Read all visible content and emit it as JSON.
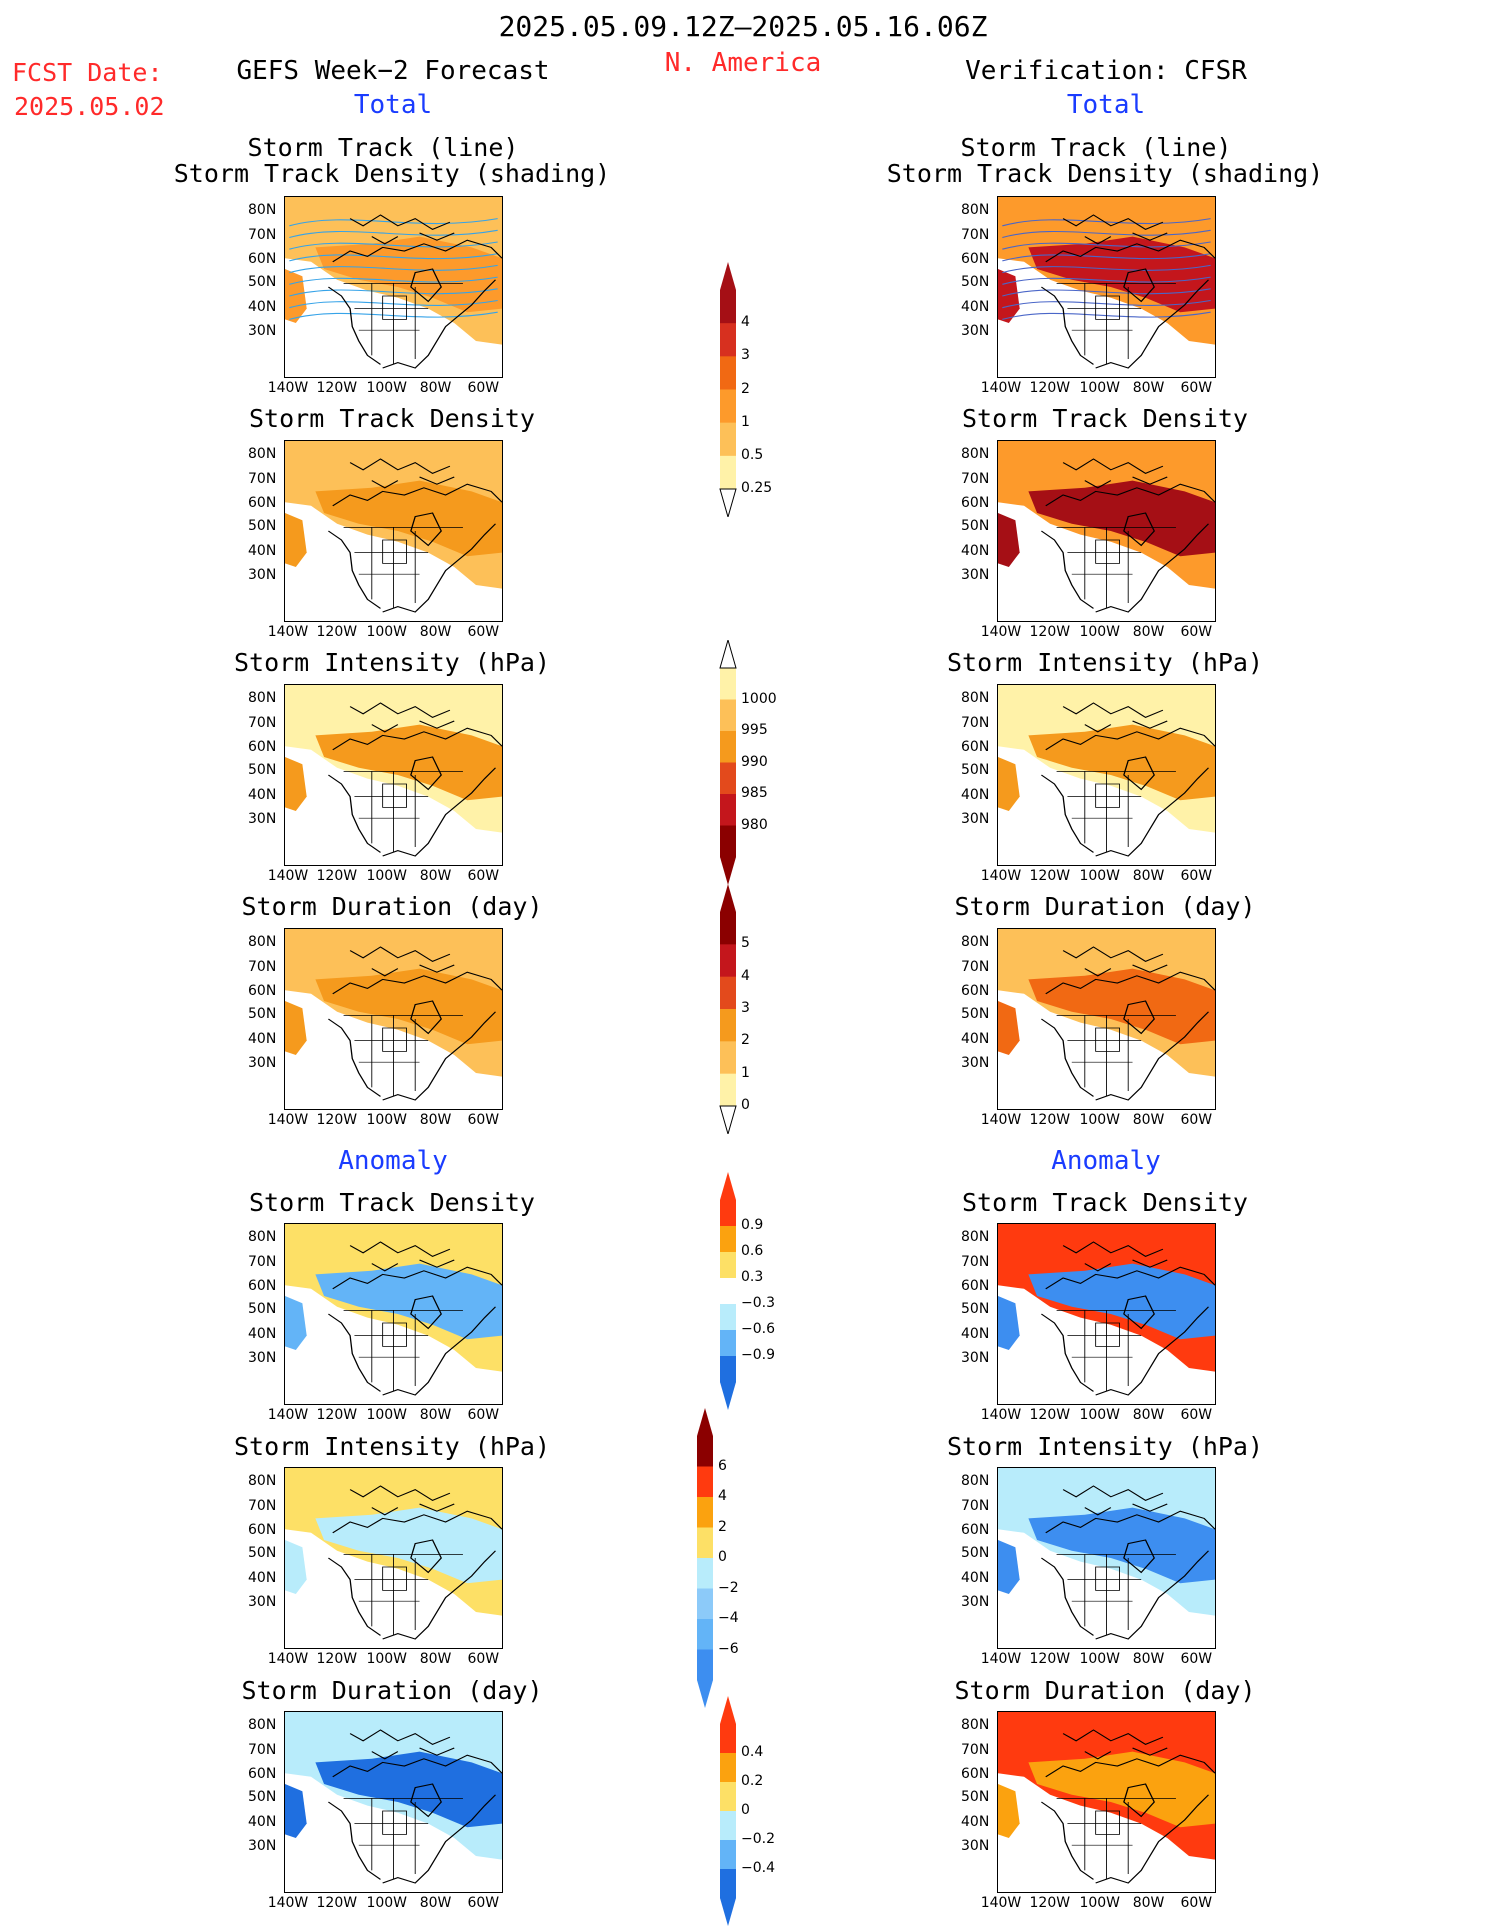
{
  "header": {
    "period": "2025.05.09.12Z–2025.05.16.06Z",
    "region": "N. America",
    "fcst_label": "FCST Date:",
    "fcst_date": "2025.05.02",
    "left_title": "GEFS Week−2 Forecast",
    "right_title": "Verification: CFSR",
    "total_left": "Total",
    "total_right": "Total",
    "anom_left": "Anomaly",
    "anom_right": "Anomaly"
  },
  "panel_titles": {
    "track_line": "Storm Track (line)",
    "track_shading": "Storm Track Density (shading)",
    "density": "Storm Track Density",
    "intensity": "Storm Intensity (hPa)",
    "duration": "Storm Duration (day)"
  },
  "axes": {
    "lat_labels": [
      "80N",
      "70N",
      "60N",
      "50N",
      "40N",
      "30N"
    ],
    "lon_labels": [
      "140W",
      "120W",
      "100W",
      "80W",
      "60W"
    ]
  },
  "colorbars": {
    "density_total": {
      "labels": [
        "4",
        "3",
        "2",
        "1",
        "0.5",
        "0.25"
      ],
      "colors": [
        "#a50f15",
        "#d7301f",
        "#f16913",
        "#fd9a2b",
        "#fdc058",
        "#fff2a8"
      ]
    },
    "intensity_total": {
      "labels": [
        "1000",
        "995",
        "990",
        "985",
        "980"
      ],
      "colors": [
        "#fff2a8",
        "#fdc058",
        "#f59a1d",
        "#e34a1c",
        "#c4161c",
        "#8b0000"
      ]
    },
    "duration_total": {
      "labels": [
        "5",
        "4",
        "3",
        "2",
        "1",
        "0"
      ],
      "colors": [
        "#8b0000",
        "#c4161c",
        "#e34a1c",
        "#f59a1d",
        "#fdc058",
        "#fff2a8"
      ]
    },
    "density_anom": {
      "labels": [
        "0.9",
        "0.6",
        "0.3",
        "−0.3",
        "−0.6",
        "−0.9"
      ],
      "colors": [
        "#ff3a0f",
        "#fba20f",
        "#fde066",
        "#ffffff",
        "#b8ecfb",
        "#63b4f7",
        "#1f6fe0"
      ]
    },
    "intensity_anom": {
      "labels": [
        "6",
        "4",
        "2",
        "0",
        "−2",
        "−4",
        "−6"
      ],
      "colors": [
        "#8b0000",
        "#ff3a0f",
        "#fba20f",
        "#fde066",
        "#b8ecfb",
        "#8ccaf9",
        "#63b4f7",
        "#3d8ef0"
      ]
    },
    "duration_anom": {
      "labels": [
        "0.4",
        "0.2",
        "0",
        "−0.2",
        "−0.4"
      ],
      "colors": [
        "#ff3a0f",
        "#fba20f",
        "#fde066",
        "#b8ecfb",
        "#63b4f7",
        "#1f6fe0"
      ]
    }
  },
  "shading": {
    "fc_track": {
      "base": "#fdc058",
      "hi": "#fd9a2b",
      "line": "#36a3e8"
    },
    "fc_density": {
      "base": "#fdc058",
      "hi": "#f59a1d"
    },
    "fc_intensity": {
      "base": "#fff2a8",
      "hi": "#f59a1d"
    },
    "fc_duration": {
      "base": "#fdc058",
      "hi": "#f59a1d"
    },
    "fc_density_anom": {
      "base": "#fde066",
      "hi": "#63b4f7"
    },
    "fc_intensity_anom": {
      "base": "#fde066",
      "hi": "#b8ecfb"
    },
    "fc_duration_anom": {
      "base": "#b8ecfb",
      "hi": "#1f6fe0"
    },
    "vr_track": {
      "base": "#fd9a2b",
      "hi": "#c4161c",
      "line": "#4a66c8"
    },
    "vr_density": {
      "base": "#fd9a2b",
      "hi": "#a50f15"
    },
    "vr_intensity": {
      "base": "#fff2a8",
      "hi": "#f59a1d"
    },
    "vr_duration": {
      "base": "#fdc058",
      "hi": "#f16913"
    },
    "vr_density_anom": {
      "base": "#ff3a0f",
      "hi": "#3d8ef0"
    },
    "vr_intensity_anom": {
      "base": "#b8ecfb",
      "hi": "#3d8ef0"
    },
    "vr_duration_anom": {
      "base": "#ff3a0f",
      "hi": "#fba20f"
    }
  }
}
